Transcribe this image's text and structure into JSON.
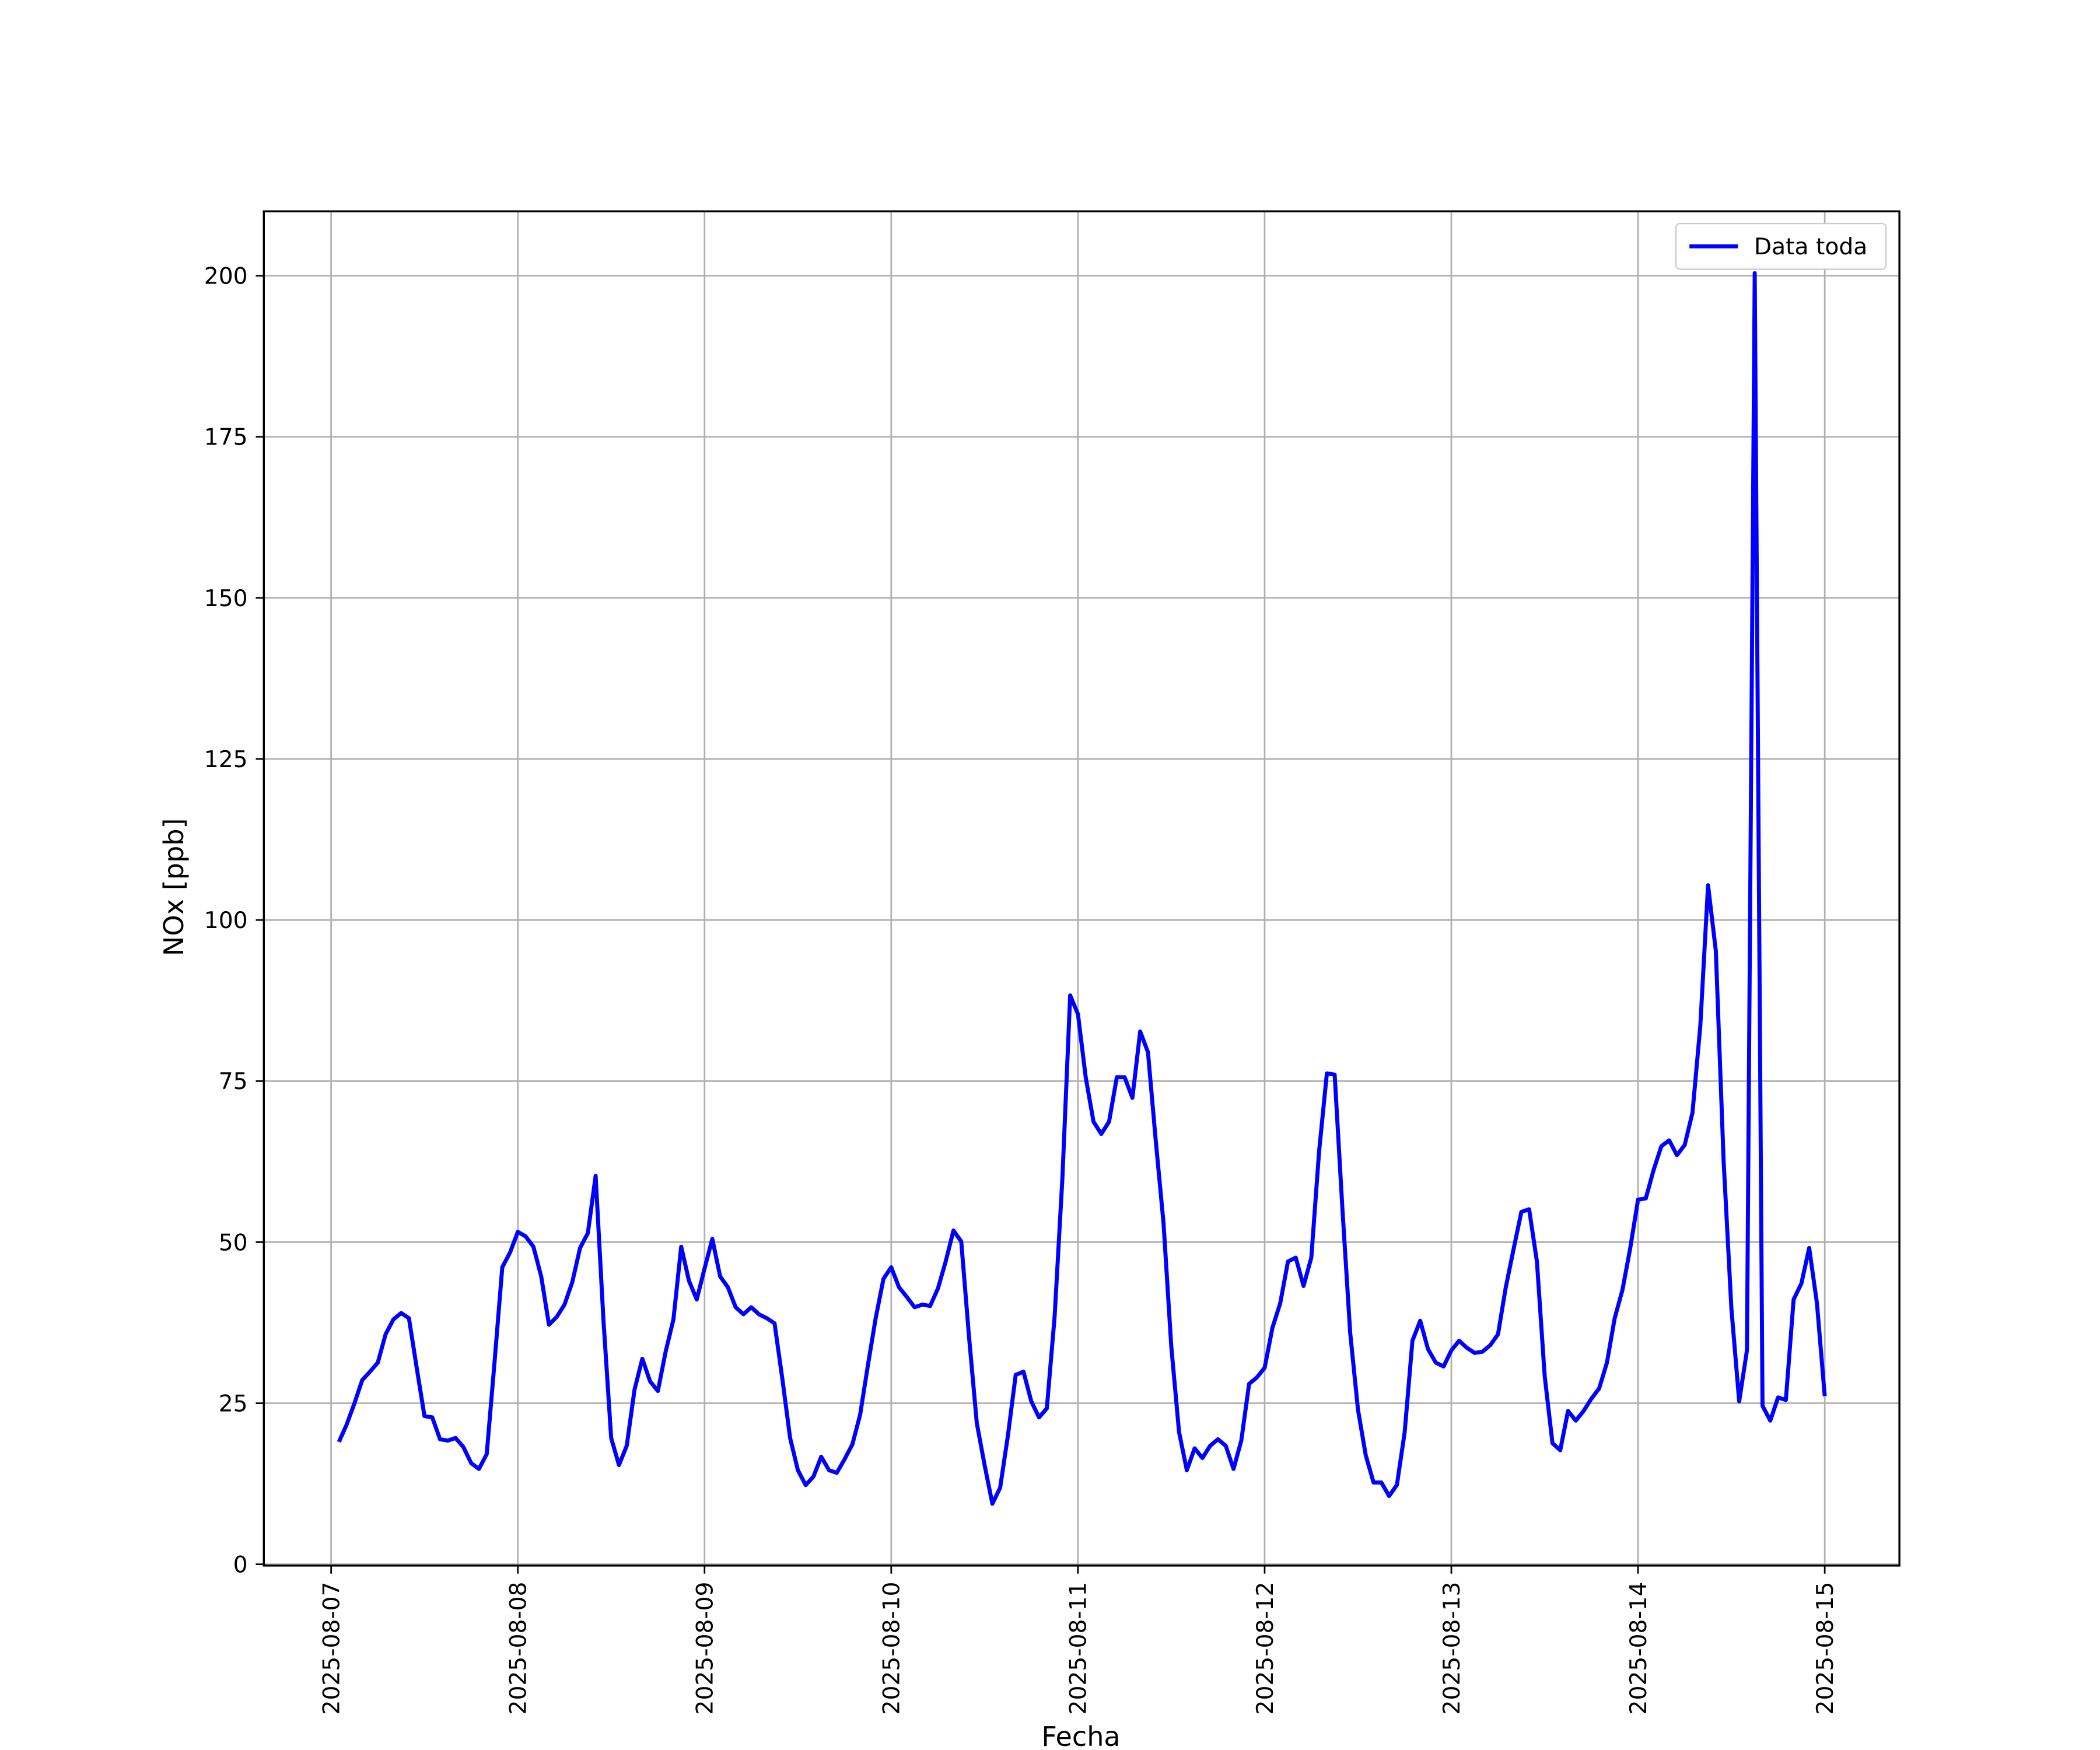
{
  "chart_data": {
    "type": "line",
    "xlabel": "Fecha",
    "ylabel": "NOx [ppb]",
    "x": [
      "2025-08-07 01:00",
      "2025-08-07 02:00",
      "2025-08-07 03:00",
      "2025-08-07 04:00",
      "2025-08-07 05:00",
      "2025-08-07 06:00",
      "2025-08-07 07:00",
      "2025-08-07 08:00",
      "2025-08-07 09:00",
      "2025-08-07 10:00",
      "2025-08-07 11:00",
      "2025-08-07 12:00",
      "2025-08-07 13:00",
      "2025-08-07 14:00",
      "2025-08-07 15:00",
      "2025-08-07 16:00",
      "2025-08-07 17:00",
      "2025-08-07 18:00",
      "2025-08-07 19:00",
      "2025-08-07 20:00",
      "2025-08-07 21:00",
      "2025-08-07 22:00",
      "2025-08-07 23:00",
      "2025-08-08 00:00",
      "2025-08-08 01:00",
      "2025-08-08 02:00",
      "2025-08-08 03:00",
      "2025-08-08 04:00",
      "2025-08-08 05:00",
      "2025-08-08 06:00",
      "2025-08-08 07:00",
      "2025-08-08 08:00",
      "2025-08-08 09:00",
      "2025-08-08 10:00",
      "2025-08-08 11:00",
      "2025-08-08 12:00",
      "2025-08-08 13:00",
      "2025-08-08 14:00",
      "2025-08-08 15:00",
      "2025-08-08 16:00",
      "2025-08-08 17:00",
      "2025-08-08 18:00",
      "2025-08-08 19:00",
      "2025-08-08 20:00",
      "2025-08-08 21:00",
      "2025-08-08 22:00",
      "2025-08-08 23:00",
      "2025-08-09 00:00",
      "2025-08-09 01:00",
      "2025-08-09 02:00",
      "2025-08-09 03:00",
      "2025-08-09 04:00",
      "2025-08-09 05:00",
      "2025-08-09 06:00",
      "2025-08-09 07:00",
      "2025-08-09 08:00",
      "2025-08-09 09:00",
      "2025-08-09 10:00",
      "2025-08-09 11:00",
      "2025-08-09 12:00",
      "2025-08-09 13:00",
      "2025-08-09 14:00",
      "2025-08-09 15:00",
      "2025-08-09 16:00",
      "2025-08-09 17:00",
      "2025-08-09 18:00",
      "2025-08-09 19:00",
      "2025-08-09 20:00",
      "2025-08-09 21:00",
      "2025-08-09 22:00",
      "2025-08-09 23:00",
      "2025-08-10 00:00",
      "2025-08-10 01:00",
      "2025-08-10 02:00",
      "2025-08-10 03:00",
      "2025-08-10 04:00",
      "2025-08-10 05:00",
      "2025-08-10 06:00",
      "2025-08-10 07:00",
      "2025-08-10 08:00",
      "2025-08-10 09:00",
      "2025-08-10 10:00",
      "2025-08-10 11:00",
      "2025-08-10 12:00",
      "2025-08-10 13:00",
      "2025-08-10 14:00",
      "2025-08-10 15:00",
      "2025-08-10 16:00",
      "2025-08-10 17:00",
      "2025-08-10 18:00",
      "2025-08-10 19:00",
      "2025-08-10 20:00",
      "2025-08-10 21:00",
      "2025-08-10 22:00",
      "2025-08-10 23:00",
      "2025-08-11 00:00",
      "2025-08-11 01:00",
      "2025-08-11 02:00",
      "2025-08-11 03:00",
      "2025-08-11 04:00",
      "2025-08-11 05:00",
      "2025-08-11 06:00",
      "2025-08-11 07:00",
      "2025-08-11 08:00",
      "2025-08-11 09:00",
      "2025-08-11 10:00",
      "2025-08-11 11:00",
      "2025-08-11 12:00",
      "2025-08-11 13:00",
      "2025-08-11 14:00",
      "2025-08-11 15:00",
      "2025-08-11 16:00",
      "2025-08-11 17:00",
      "2025-08-11 18:00",
      "2025-08-11 19:00",
      "2025-08-11 20:00",
      "2025-08-11 21:00",
      "2025-08-11 22:00",
      "2025-08-11 23:00",
      "2025-08-12 00:00",
      "2025-08-12 01:00",
      "2025-08-12 02:00",
      "2025-08-12 03:00",
      "2025-08-12 04:00",
      "2025-08-12 05:00",
      "2025-08-12 06:00",
      "2025-08-12 07:00",
      "2025-08-12 08:00",
      "2025-08-12 09:00",
      "2025-08-12 10:00",
      "2025-08-12 11:00",
      "2025-08-12 12:00",
      "2025-08-12 13:00",
      "2025-08-12 14:00",
      "2025-08-12 15:00",
      "2025-08-12 16:00",
      "2025-08-12 17:00",
      "2025-08-12 18:00",
      "2025-08-12 19:00",
      "2025-08-12 20:00",
      "2025-08-12 21:00",
      "2025-08-12 22:00",
      "2025-08-12 23:00",
      "2025-08-13 00:00",
      "2025-08-13 01:00",
      "2025-08-13 02:00",
      "2025-08-13 03:00",
      "2025-08-13 04:00",
      "2025-08-13 05:00",
      "2025-08-13 06:00",
      "2025-08-13 07:00",
      "2025-08-13 08:00",
      "2025-08-13 09:00",
      "2025-08-13 10:00",
      "2025-08-13 11:00",
      "2025-08-13 12:00",
      "2025-08-13 13:00",
      "2025-08-13 14:00",
      "2025-08-13 15:00",
      "2025-08-13 16:00",
      "2025-08-13 17:00",
      "2025-08-13 18:00",
      "2025-08-13 19:00",
      "2025-08-13 20:00",
      "2025-08-13 21:00",
      "2025-08-13 22:00",
      "2025-08-13 23:00",
      "2025-08-14 00:00",
      "2025-08-14 01:00",
      "2025-08-14 02:00",
      "2025-08-14 03:00",
      "2025-08-14 04:00",
      "2025-08-14 05:00",
      "2025-08-14 06:00",
      "2025-08-14 07:00",
      "2025-08-14 08:00",
      "2025-08-14 09:00",
      "2025-08-14 10:00",
      "2025-08-14 11:00",
      "2025-08-14 12:00",
      "2025-08-14 13:00",
      "2025-08-14 14:00",
      "2025-08-14 15:00",
      "2025-08-14 16:00",
      "2025-08-14 17:00",
      "2025-08-14 18:00",
      "2025-08-14 19:00",
      "2025-08-14 20:00",
      "2025-08-14 21:00",
      "2025-08-14 22:00",
      "2025-08-14 23:00",
      "2025-08-15 00:00"
    ],
    "series": [
      {
        "name": "Data toda",
        "color": "#0000ff",
        "values": [
          19,
          21.7,
          25,
          28.6,
          29.9,
          31.3,
          35.7,
          38,
          39,
          38.2,
          30.5,
          23,
          22.8,
          19.4,
          19.2,
          19.6,
          18.2,
          15.7,
          14.8,
          17.1,
          31.3,
          46.1,
          48.4,
          51.6,
          50.9,
          49.3,
          44.7,
          37.2,
          38.4,
          40.3,
          43.8,
          49.1,
          51.4,
          60.3,
          38,
          19.6,
          15.4,
          18.4,
          27.1,
          31.9,
          28.4,
          26.9,
          33,
          38,
          49.3,
          44,
          41.1,
          45.9,
          50.5,
          44.7,
          43,
          39.9,
          38.8,
          39.9,
          38.8,
          38.2,
          37.4,
          28.8,
          19.6,
          14.6,
          12.3,
          13.6,
          16.7,
          14.6,
          14.2,
          16.3,
          18.6,
          23.2,
          30.9,
          38.2,
          44.3,
          46.1,
          43,
          41.5,
          39.9,
          40.3,
          40.1,
          42.8,
          47,
          51.8,
          50.1,
          35.3,
          21.9,
          15.4,
          9.4,
          11.9,
          20,
          29.4,
          29.9,
          25.3,
          22.8,
          24.2,
          38.4,
          59.9,
          88.3,
          85.4,
          75.6,
          68.7,
          66.8,
          68.7,
          75.6,
          75.6,
          72.4,
          82.7,
          79.5,
          65.8,
          53,
          33.8,
          20.5,
          14.6,
          18,
          16.5,
          18.4,
          19.4,
          18.4,
          14.8,
          19.2,
          28,
          29,
          30.5,
          36.7,
          40.5,
          47,
          47.6,
          43.2,
          47.6,
          64.1,
          76.2,
          76,
          55.1,
          35.9,
          24,
          16.9,
          12.7,
          12.7,
          10.6,
          12.3,
          20.5,
          34.7,
          37.8,
          33.4,
          31.3,
          30.7,
          33.2,
          34.7,
          33.6,
          32.8,
          33,
          34,
          35.7,
          43,
          48.9,
          54.7,
          55.1,
          47,
          29.2,
          18.8,
          17.7,
          23.8,
          22.3,
          23.8,
          25.7,
          27.3,
          31.3,
          38.2,
          42.6,
          49.1,
          56.6,
          56.8,
          61.2,
          64.9,
          65.8,
          63.5,
          65.1,
          70.1,
          83.5,
          105.4,
          95.2,
          62.6,
          39.7,
          25.3,
          33.2,
          200.4,
          24.6,
          22.3,
          25.9,
          25.5,
          41.1,
          43.6,
          49.1,
          40.5,
          26.1
        ]
      }
    ],
    "xlim": [
      "2025-08-06 15:21",
      "2025-08-15 09:36"
    ],
    "xticks": [
      "2025-08-07",
      "2025-08-08",
      "2025-08-09",
      "2025-08-10",
      "2025-08-11",
      "2025-08-12",
      "2025-08-13",
      "2025-08-14",
      "2025-08-15"
    ],
    "ylim": [
      -0.2,
      210
    ],
    "yticks": [
      0,
      25,
      50,
      75,
      100,
      125,
      150,
      175,
      200
    ],
    "grid": true,
    "legend": "upper right"
  }
}
